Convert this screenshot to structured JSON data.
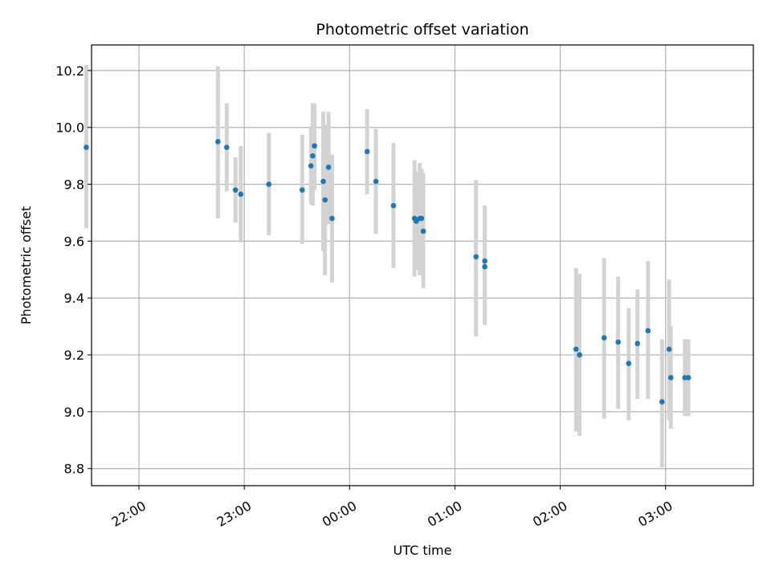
{
  "chart_data": {
    "type": "scatter",
    "title": "Photometric offset variation",
    "xlabel": "UTC time",
    "ylabel": "Photometric offset",
    "x_axis": "time",
    "xlim": [
      "21:33",
      "03:50"
    ],
    "ylim": [
      8.74,
      10.29
    ],
    "xticks": [
      {
        "t": "22:00",
        "label": "22:00"
      },
      {
        "t": "23:00",
        "label": "23:00"
      },
      {
        "t": "00:00",
        "label": "00:00"
      },
      {
        "t": "01:00",
        "label": "01:00"
      },
      {
        "t": "02:00",
        "label": "02:00"
      },
      {
        "t": "03:00",
        "label": "03:00"
      }
    ],
    "yticks": [
      {
        "v": 8.8,
        "label": "8.8"
      },
      {
        "v": 9.0,
        "label": "9.0"
      },
      {
        "v": 9.2,
        "label": "9.2"
      },
      {
        "v": 9.4,
        "label": "9.4"
      },
      {
        "v": 9.6,
        "label": "9.6"
      },
      {
        "v": 9.8,
        "label": "9.8"
      },
      {
        "v": 10.0,
        "label": "10.0"
      },
      {
        "v": 10.2,
        "label": "10.2"
      }
    ],
    "grid": true,
    "marker_color": "#1f77b4",
    "errorbar_color": "#d3d3d3",
    "points": [
      {
        "t": "21:30",
        "y": 9.93,
        "lo": 9.645,
        "hi": 10.22
      },
      {
        "t": "22:45",
        "y": 9.95,
        "lo": 9.68,
        "hi": 10.215
      },
      {
        "t": "22:50",
        "y": 9.93,
        "lo": 9.775,
        "hi": 10.085
      },
      {
        "t": "22:55",
        "y": 9.78,
        "lo": 9.665,
        "hi": 9.895
      },
      {
        "t": "22:58",
        "y": 9.765,
        "lo": 9.595,
        "hi": 9.935
      },
      {
        "t": "23:14",
        "y": 9.8,
        "lo": 9.62,
        "hi": 9.98
      },
      {
        "t": "23:33",
        "y": 9.78,
        "lo": 9.59,
        "hi": 9.975
      },
      {
        "t": "23:38",
        "y": 9.865,
        "lo": 9.73,
        "hi": 10.0
      },
      {
        "t": "23:39",
        "y": 9.9,
        "lo": 9.725,
        "hi": 10.085
      },
      {
        "t": "23:40",
        "y": 9.935,
        "lo": 9.78,
        "hi": 10.085
      },
      {
        "t": "23:45",
        "y": 9.81,
        "lo": 9.565,
        "hi": 10.055
      },
      {
        "t": "23:46",
        "y": 9.745,
        "lo": 9.48,
        "hi": 10.01
      },
      {
        "t": "23:48",
        "y": 9.86,
        "lo": 9.66,
        "hi": 10.055
      },
      {
        "t": "23:50",
        "y": 9.68,
        "lo": 9.455,
        "hi": 9.905
      },
      {
        "t": "00:10",
        "y": 9.915,
        "lo": 9.765,
        "hi": 10.065
      },
      {
        "t": "00:15",
        "y": 9.81,
        "lo": 9.625,
        "hi": 9.995
      },
      {
        "t": "00:25",
        "y": 9.725,
        "lo": 9.505,
        "hi": 9.945
      },
      {
        "t": "00:37",
        "y": 9.68,
        "lo": 9.475,
        "hi": 9.885
      },
      {
        "t": "00:38",
        "y": 9.67,
        "lo": 9.5,
        "hi": 9.845
      },
      {
        "t": "00:40",
        "y": 9.68,
        "lo": 9.48,
        "hi": 9.875
      },
      {
        "t": "00:41",
        "y": 9.68,
        "lo": 9.505,
        "hi": 9.855
      },
      {
        "t": "00:42",
        "y": 9.635,
        "lo": 9.435,
        "hi": 9.84
      },
      {
        "t": "01:12",
        "y": 9.545,
        "lo": 9.265,
        "hi": 9.815
      },
      {
        "t": "01:17",
        "y": 9.53,
        "lo": 9.335,
        "hi": 9.725
      },
      {
        "t": "01:17",
        "y": 9.51,
        "lo": 9.305,
        "hi": 9.725
      },
      {
        "t": "02:09",
        "y": 9.22,
        "lo": 8.93,
        "hi": 9.505
      },
      {
        "t": "02:11",
        "y": 9.2,
        "lo": 8.915,
        "hi": 9.485
      },
      {
        "t": "02:25",
        "y": 9.26,
        "lo": 8.975,
        "hi": 9.54
      },
      {
        "t": "02:33",
        "y": 9.245,
        "lo": 9.01,
        "hi": 9.475
      },
      {
        "t": "02:39",
        "y": 9.17,
        "lo": 8.97,
        "hi": 9.365
      },
      {
        "t": "02:44",
        "y": 9.24,
        "lo": 9.045,
        "hi": 9.43
      },
      {
        "t": "02:50",
        "y": 9.285,
        "lo": 9.045,
        "hi": 9.53
      },
      {
        "t": "02:58",
        "y": 9.035,
        "lo": 8.805,
        "hi": 9.255
      },
      {
        "t": "03:02",
        "y": 9.22,
        "lo": 8.97,
        "hi": 9.465
      },
      {
        "t": "03:03",
        "y": 9.12,
        "lo": 8.94,
        "hi": 9.3
      },
      {
        "t": "03:11",
        "y": 9.12,
        "lo": 8.985,
        "hi": 9.255
      },
      {
        "t": "03:13",
        "y": 9.12,
        "lo": 8.985,
        "hi": 9.255
      }
    ]
  }
}
